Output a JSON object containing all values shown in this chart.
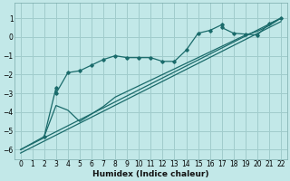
{
  "xlabel": "Humidex (Indice chaleur)",
  "bg_color": "#c2e8e8",
  "grid_color": "#a0cccc",
  "line_color": "#1a6b6b",
  "xlim": [
    -0.5,
    22.5
  ],
  "ylim": [
    -6.5,
    1.8
  ],
  "yticks": [
    1,
    0,
    -1,
    -2,
    -3,
    -4,
    -5,
    -6
  ],
  "xticks": [
    0,
    1,
    2,
    3,
    4,
    5,
    6,
    7,
    8,
    9,
    10,
    11,
    12,
    13,
    14,
    15,
    16,
    17,
    18,
    19,
    20,
    21,
    22
  ],
  "line1_x": [
    0,
    22
  ],
  "line1_y": [
    -6.0,
    1.0
  ],
  "line2_x": [
    0,
    22
  ],
  "line2_y": [
    -6.0,
    1.0
  ],
  "curve1_x": [
    2,
    3,
    3,
    4,
    5,
    6,
    7,
    8,
    9,
    10,
    11,
    12,
    13,
    14,
    15,
    16,
    17,
    17,
    18,
    19,
    20,
    21,
    22
  ],
  "curve1_y": [
    -5.3,
    -2.7,
    -3.0,
    -1.9,
    -1.8,
    -1.5,
    -1.2,
    -1.0,
    -1.1,
    -1.1,
    -1.1,
    -1.3,
    -1.3,
    -0.7,
    0.2,
    0.35,
    0.65,
    0.5,
    0.2,
    0.15,
    0.1,
    0.7,
    1.0
  ],
  "curve2_x": [
    0,
    2,
    3,
    4,
    5,
    6,
    7,
    8,
    9,
    10,
    11,
    12,
    13,
    14,
    15,
    16,
    17,
    18,
    19,
    20,
    21,
    22
  ],
  "curve2_y": [
    -6.0,
    -5.3,
    -3.65,
    -3.9,
    -4.5,
    -4.1,
    -3.7,
    -3.2,
    -2.9,
    -2.6,
    -2.3,
    -2.0,
    -1.7,
    -1.4,
    -1.1,
    -0.8,
    -0.5,
    -0.2,
    0.1,
    0.3,
    0.6,
    1.0
  ],
  "tick_fontsize": 5.5,
  "xlabel_fontsize": 6.5
}
